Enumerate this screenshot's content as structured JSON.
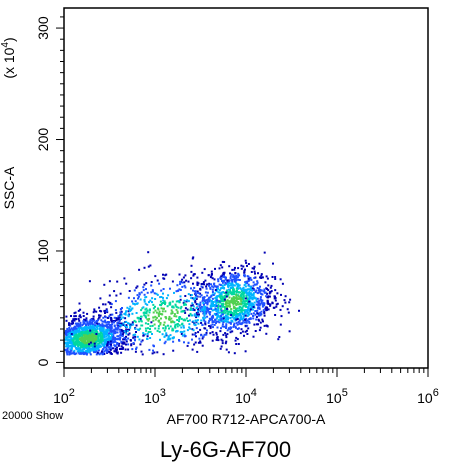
{
  "chart_data": {
    "type": "scatter",
    "style": "pseudocolor density dot plot",
    "title": "Ly-6G-AF700",
    "xlabel": "AF700 R712-APCA700-A",
    "ylabel": "SSC-A",
    "y_multiplier_label": "(x 10",
    "y_multiplier_exp": "4",
    "y_multiplier_close": ")",
    "event_count_label": "20000 Show",
    "x_scale": "log",
    "xlim": [
      100,
      1000000
    ],
    "x_ticks": [
      {
        "base": "10",
        "exp": "2",
        "value": 100
      },
      {
        "base": "10",
        "exp": "3",
        "value": 1000
      },
      {
        "base": "10",
        "exp": "4",
        "value": 10000
      },
      {
        "base": "10",
        "exp": "5",
        "value": 100000
      },
      {
        "base": "10",
        "exp": "6",
        "value": 1000000
      }
    ],
    "y_scale": "linear",
    "ylim": [
      -5,
      318
    ],
    "y_ticks": [
      {
        "label": "0",
        "value": 0
      },
      {
        "label": "100",
        "value": 100
      },
      {
        "label": "200",
        "value": 200
      },
      {
        "label": "300",
        "value": 300
      }
    ],
    "clusters": [
      {
        "x_center": 180,
        "y_center": 22,
        "x_spread_log": 0.22,
        "y_spread": 10,
        "share": 0.45
      },
      {
        "x_center": 7000,
        "y_center": 55,
        "x_spread_log": 0.22,
        "y_spread": 15,
        "share": 0.35
      },
      {
        "x_center": 1200,
        "y_center": 42,
        "x_spread_log": 0.4,
        "y_spread": 18,
        "share": 0.2
      }
    ],
    "density_colors": [
      "#0000b4",
      "#1e50ff",
      "#00b4ff",
      "#00d7a0",
      "#50d050"
    ]
  }
}
